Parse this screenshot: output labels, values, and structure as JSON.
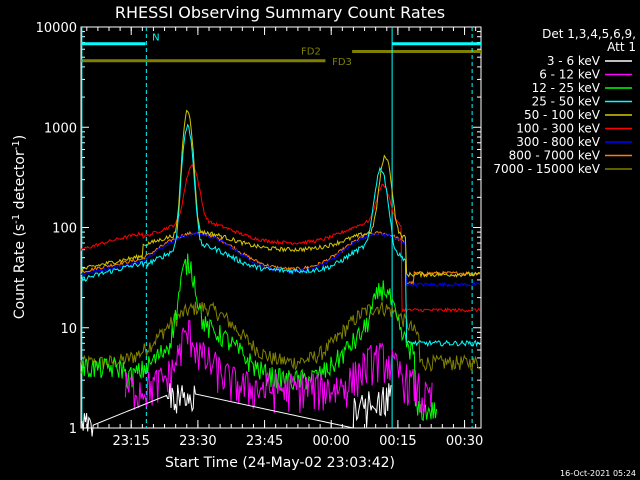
{
  "chart_data": {
    "type": "line",
    "title": "RHESSI Observing Summary Count Rates",
    "xlabel": "Start Time (24-May-02 23:03:42)",
    "ylabel_main": "Count Rate (s",
    "ylabel_sup1": "-1",
    "ylabel_mid": " detector",
    "ylabel_sup2": "-1",
    "ylabel_end": ")",
    "yscale": "log",
    "ylim": [
      1,
      10000
    ],
    "xlim_minutes": [
      0,
      90
    ],
    "x_ticks": [
      {
        "label": "23:15",
        "minutes": 11.3
      },
      {
        "label": "23:30",
        "minutes": 26.3
      },
      {
        "label": "23:45",
        "minutes": 41.3
      },
      {
        "label": "00:00",
        "minutes": 56.3
      },
      {
        "label": "00:15",
        "minutes": 71.3
      },
      {
        "label": "00:30",
        "minutes": 86.3
      }
    ],
    "y_ticks": [
      {
        "label": "1",
        "value": 1
      },
      {
        "label": "10",
        "value": 10
      },
      {
        "label": "100",
        "value": 100
      },
      {
        "label": "1000",
        "value": 1000
      },
      {
        "label": "10000",
        "value": 10000
      }
    ],
    "legend_header": [
      "Det 1,3,4,5,6,9,",
      "Att 1"
    ],
    "legend_placement": "right",
    "series": [
      {
        "name": "3 - 6 keV",
        "color": "#ffffff"
      },
      {
        "name": "6 - 12 keV",
        "color": "#ff00ff"
      },
      {
        "name": "12 - 25 keV",
        "color": "#00ff00"
      },
      {
        "name": "25 - 50 keV",
        "color": "#00ffff"
      },
      {
        "name": "50 - 100 keV",
        "color": "#d4c800"
      },
      {
        "name": "100 - 300 keV",
        "color": "#ff0000"
      },
      {
        "name": "300 - 800 keV",
        "color": "#0000ff"
      },
      {
        "name": "800 - 7000 keV",
        "color": "#ff8000"
      },
      {
        "name": "7000 - 15000 keV",
        "color": "#808000"
      }
    ],
    "annotations": {
      "n_label": "N",
      "fd2_label": "FD2",
      "fd3_label": "FD3"
    },
    "footer": "16-Oct-2021 05:24"
  }
}
